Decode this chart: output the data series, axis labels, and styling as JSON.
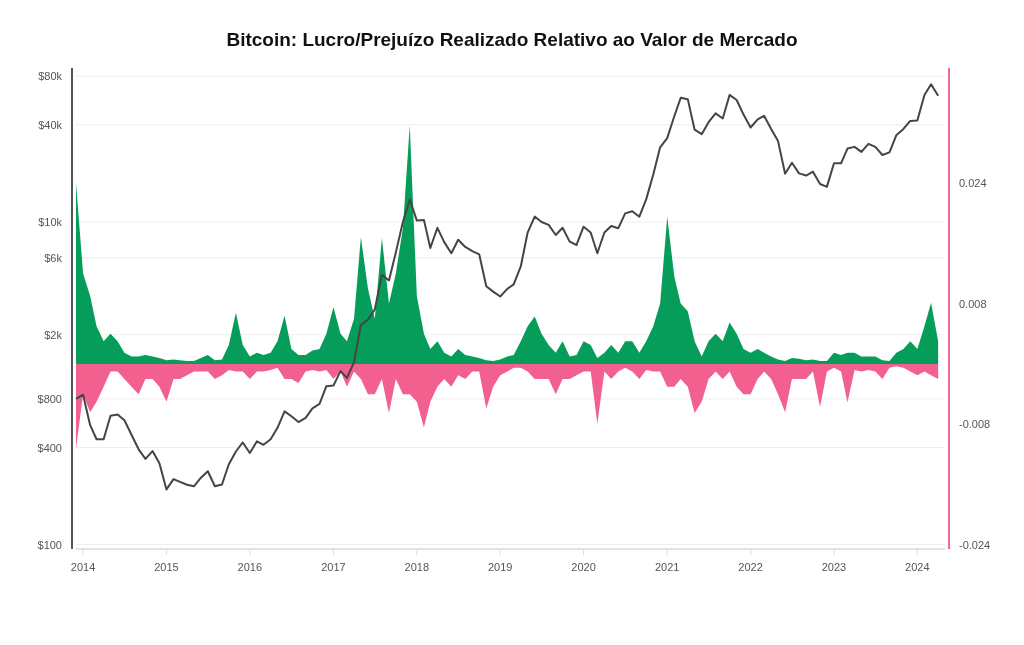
{
  "chart_data": {
    "type": "line",
    "title": "Bitcoin: Lucro/Prejuízo Realizado Relativo ao Valor de Mercado",
    "x": [
      "2013-12",
      "2014-01",
      "2014-02",
      "2014-03",
      "2014-04",
      "2014-05",
      "2014-06",
      "2014-07",
      "2014-08",
      "2014-09",
      "2014-10",
      "2014-11",
      "2014-12",
      "2015-01",
      "2015-02",
      "2015-03",
      "2015-04",
      "2015-05",
      "2015-06",
      "2015-07",
      "2015-08",
      "2015-09",
      "2015-10",
      "2015-11",
      "2015-12",
      "2016-01",
      "2016-02",
      "2016-03",
      "2016-04",
      "2016-05",
      "2016-06",
      "2016-07",
      "2016-08",
      "2016-09",
      "2016-10",
      "2016-11",
      "2016-12",
      "2017-01",
      "2017-02",
      "2017-03",
      "2017-04",
      "2017-05",
      "2017-06",
      "2017-07",
      "2017-08",
      "2017-09",
      "2017-10",
      "2017-11",
      "2017-12",
      "2018-01",
      "2018-02",
      "2018-03",
      "2018-04",
      "2018-05",
      "2018-06",
      "2018-07",
      "2018-08",
      "2018-09",
      "2018-10",
      "2018-11",
      "2018-12",
      "2019-01",
      "2019-02",
      "2019-03",
      "2019-04",
      "2019-05",
      "2019-06",
      "2019-07",
      "2019-08",
      "2019-09",
      "2019-10",
      "2019-11",
      "2019-12",
      "2020-01",
      "2020-02",
      "2020-03",
      "2020-04",
      "2020-05",
      "2020-06",
      "2020-07",
      "2020-08",
      "2020-09",
      "2020-10",
      "2020-11",
      "2020-12",
      "2021-01",
      "2021-02",
      "2021-03",
      "2021-04",
      "2021-05",
      "2021-06",
      "2021-07",
      "2021-08",
      "2021-09",
      "2021-10",
      "2021-11",
      "2021-12",
      "2022-01",
      "2022-02",
      "2022-03",
      "2022-04",
      "2022-05",
      "2022-06",
      "2022-07",
      "2022-08",
      "2022-09",
      "2022-10",
      "2022-11",
      "2022-12",
      "2023-01",
      "2023-02",
      "2023-03",
      "2023-04",
      "2023-05",
      "2023-06",
      "2023-07",
      "2023-08",
      "2023-09",
      "2023-10",
      "2023-11",
      "2023-12",
      "2024-01",
      "2024-02",
      "2024-03",
      "2024-04"
    ],
    "xlim": [
      "2013-12",
      "2024-05"
    ],
    "xticks": [
      {
        "value": "2014",
        "label": "2014"
      },
      {
        "value": "2015",
        "label": "2015"
      },
      {
        "value": "2016",
        "label": "2016"
      },
      {
        "value": "2017",
        "label": "2017"
      },
      {
        "value": "2018",
        "label": "2018"
      },
      {
        "value": "2019",
        "label": "2019"
      },
      {
        "value": "2020",
        "label": "2020"
      },
      {
        "value": "2021",
        "label": "2021"
      },
      {
        "value": "2022",
        "label": "2022"
      },
      {
        "value": "2023",
        "label": "2023"
      },
      {
        "value": "2024",
        "label": "2024"
      }
    ],
    "log": "y",
    "ylim": [
      94,
      90000
    ],
    "yticks": [
      {
        "value": 100,
        "label": "$100"
      },
      {
        "value": 400,
        "label": "$400"
      },
      {
        "value": 800,
        "label": "$800"
      },
      {
        "value": 2000,
        "label": "$2k"
      },
      {
        "value": 6000,
        "label": "$6k"
      },
      {
        "value": 10000,
        "label": "$10k"
      },
      {
        "value": 40000,
        "label": "$40k"
      },
      {
        "value": 80000,
        "label": "$80k"
      }
    ],
    "y2lim": [
      -0.0245,
      0.0392
    ],
    "y2ticks": [
      -0.024,
      -0.008,
      0.008,
      0.024
    ],
    "grid": "y",
    "series": [
      {
        "type": "area",
        "axis": "y2",
        "color": "#069d5a",
        "values": [
          0.024,
          0.012,
          0.009,
          0.005,
          0.003,
          0.004,
          0.003,
          0.0015,
          0.001,
          0.001,
          0.0012,
          0.001,
          0.0008,
          0.0005,
          0.0006,
          0.0005,
          0.0004,
          0.0004,
          0.0008,
          0.0012,
          0.0005,
          0.0006,
          0.0025,
          0.0068,
          0.0025,
          0.001,
          0.0015,
          0.0012,
          0.0015,
          0.003,
          0.0064,
          0.002,
          0.0012,
          0.0012,
          0.0018,
          0.002,
          0.004,
          0.0075,
          0.004,
          0.003,
          0.006,
          0.0168,
          0.01,
          0.006,
          0.0167,
          0.008,
          0.012,
          0.018,
          0.0316,
          0.009,
          0.004,
          0.002,
          0.003,
          0.0015,
          0.001,
          0.002,
          0.0012,
          0.001,
          0.0008,
          0.0005,
          0.0004,
          0.0006,
          0.001,
          0.0012,
          0.003,
          0.005,
          0.0063,
          0.004,
          0.0025,
          0.0015,
          0.003,
          0.001,
          0.0012,
          0.003,
          0.0025,
          0.0008,
          0.0015,
          0.0025,
          0.0015,
          0.003,
          0.003,
          0.0015,
          0.003,
          0.005,
          0.008,
          0.0195,
          0.0116,
          0.008,
          0.007,
          0.003,
          0.001,
          0.003,
          0.004,
          0.003,
          0.0055,
          0.004,
          0.002,
          0.0015,
          0.002,
          0.0015,
          0.001,
          0.0006,
          0.0004,
          0.0008,
          0.0007,
          0.0005,
          0.0006,
          0.0004,
          0.0004,
          0.0015,
          0.0012,
          0.0015,
          0.0015,
          0.001,
          0.001,
          0.001,
          0.0005,
          0.0004,
          0.0015,
          0.002,
          0.003,
          0.002,
          0.005,
          0.0081,
          0.003
        ]
      },
      {
        "type": "area",
        "axis": "y2",
        "color": "#f2608f",
        "values": [
          -0.0112,
          -0.004,
          -0.0064,
          -0.005,
          -0.003,
          -0.001,
          -0.001,
          -0.002,
          -0.003,
          -0.004,
          -0.002,
          -0.002,
          -0.003,
          -0.005,
          -0.002,
          -0.002,
          -0.0015,
          -0.001,
          -0.001,
          -0.001,
          -0.002,
          -0.0015,
          -0.0008,
          -0.001,
          -0.001,
          -0.002,
          -0.001,
          -0.001,
          -0.0008,
          -0.0005,
          -0.002,
          -0.002,
          -0.0025,
          -0.001,
          -0.0008,
          -0.001,
          -0.0008,
          -0.002,
          -0.001,
          -0.003,
          -0.001,
          -0.002,
          -0.004,
          -0.004,
          -0.002,
          -0.0065,
          -0.002,
          -0.004,
          -0.004,
          -0.005,
          -0.0084,
          -0.005,
          -0.003,
          -0.002,
          -0.003,
          -0.0015,
          -0.002,
          -0.001,
          -0.001,
          -0.0059,
          -0.003,
          -0.0015,
          -0.001,
          -0.0005,
          -0.0005,
          -0.001,
          -0.002,
          -0.002,
          -0.002,
          -0.004,
          -0.002,
          -0.002,
          -0.0015,
          -0.001,
          -0.001,
          -0.0079,
          -0.001,
          -0.002,
          -0.001,
          -0.0005,
          -0.001,
          -0.002,
          -0.0008,
          -0.001,
          -0.001,
          -0.003,
          -0.003,
          -0.002,
          -0.003,
          -0.0065,
          -0.005,
          -0.002,
          -0.001,
          -0.002,
          -0.001,
          -0.003,
          -0.004,
          -0.004,
          -0.002,
          -0.001,
          -0.002,
          -0.004,
          -0.0064,
          -0.002,
          -0.002,
          -0.002,
          -0.001,
          -0.0057,
          -0.001,
          -0.0005,
          -0.001,
          -0.0051,
          -0.0008,
          -0.001,
          -0.0008,
          -0.001,
          -0.002,
          -0.0005,
          -0.0003,
          -0.0005,
          -0.001,
          -0.0015,
          -0.001,
          -0.0015,
          -0.002
        ]
      },
      {
        "color": "#454545",
        "values": [
          800,
          850,
          550,
          450,
          450,
          630,
          640,
          590,
          480,
          390,
          340,
          380,
          320,
          220,
          255,
          245,
          235,
          230,
          260,
          285,
          230,
          236,
          315,
          378,
          430,
          370,
          437,
          416,
          450,
          530,
          670,
          625,
          575,
          610,
          700,
          745,
          960,
          970,
          1190,
          1080,
          1350,
          2300,
          2480,
          2870,
          4700,
          4340,
          6470,
          10000,
          13800,
          10200,
          10300,
          6900,
          9200,
          7500,
          6400,
          7750,
          7000,
          6600,
          6300,
          4000,
          3700,
          3450,
          3850,
          4100,
          5300,
          8600,
          10800,
          10000,
          9600,
          8300,
          9200,
          7550,
          7200,
          9350,
          8600,
          6400,
          8600,
          9450,
          9150,
          11300,
          11650,
          10780,
          13800,
          19700,
          29000,
          33100,
          45200,
          58800,
          57700,
          37300,
          35000,
          41500,
          47100,
          43800,
          61300,
          57000,
          46300,
          38500,
          43200,
          45500,
          37700,
          31800,
          19900,
          23300,
          20000,
          19400,
          20500,
          17200,
          16500,
          23100,
          23100,
          28500,
          29200,
          27200,
          30500,
          29200,
          26000,
          27000,
          34500,
          37700,
          42300,
          42600,
          61200,
          71300,
          60600
        ]
      }
    ]
  }
}
